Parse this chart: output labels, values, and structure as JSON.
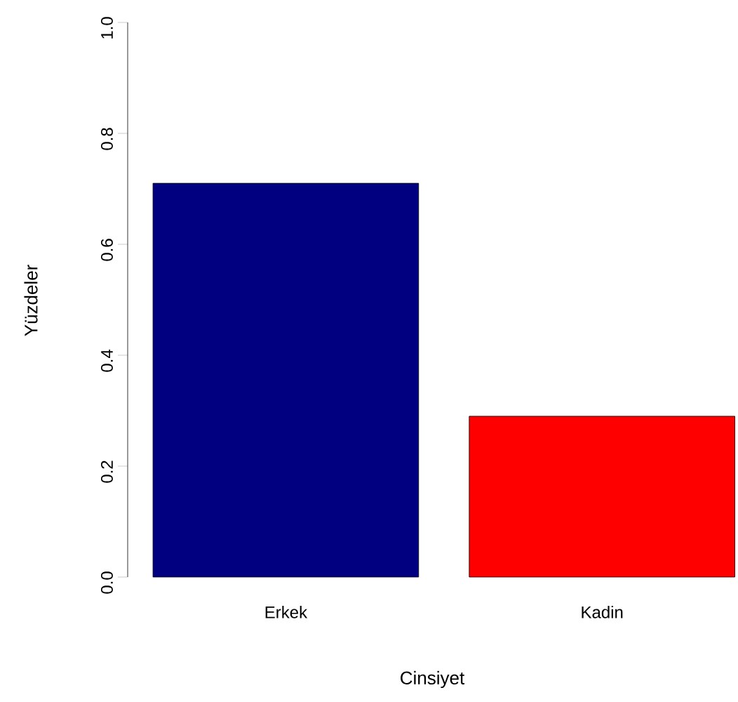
{
  "chart_data": {
    "type": "bar",
    "xlabel": "Cinsiyet",
    "ylabel": "Yüzdeler",
    "categories": [
      "Erkek",
      "Kadin"
    ],
    "values": [
      0.71,
      0.29
    ],
    "colors": [
      "#000080",
      "#ff0000"
    ],
    "ylim": [
      0,
      1
    ],
    "yticks": [
      {
        "value": 0,
        "label": "0.0"
      },
      0.2,
      0.4,
      0.6,
      0.8,
      {
        "value": 1,
        "label": "1.0"
      }
    ]
  }
}
